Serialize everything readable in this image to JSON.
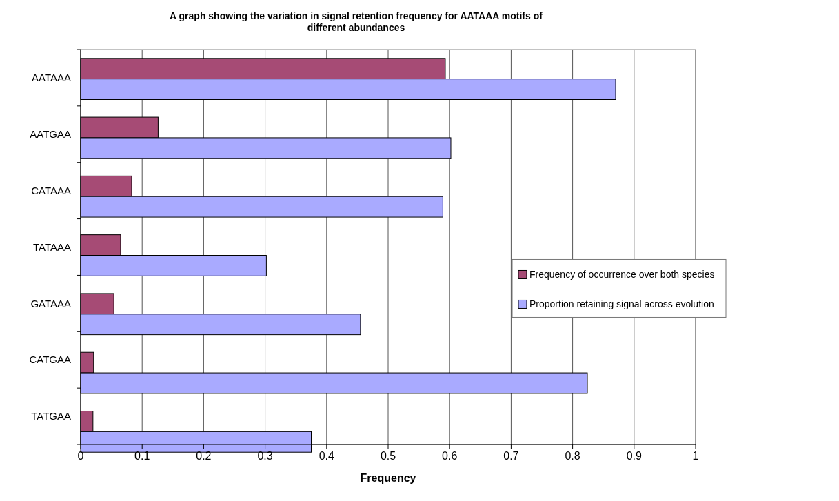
{
  "chart_data": {
    "type": "bar",
    "orientation": "horizontal",
    "title": "A graph showing the variation in signal retention frequency for AATAAA motifs of different abundances",
    "xlabel": "Frequency",
    "categories": [
      "AATAAA",
      "AATGAA",
      "CATAAA",
      "TATAAA",
      "GATAAA",
      "CATGAA",
      "TATGAA"
    ],
    "series": [
      {
        "name": "Frequency of occurrence over both species",
        "color": "#a64b75",
        "values": [
          0.593,
          0.126,
          0.083,
          0.065,
          0.054,
          0.021,
          0.02
        ]
      },
      {
        "name": "Proportion retaining signal across evolution",
        "color": "#a9aaff",
        "values": [
          0.87,
          0.602,
          0.589,
          0.302,
          0.455,
          0.824,
          0.375
        ]
      }
    ],
    "xlim": [
      0,
      1
    ],
    "xticks": [
      0,
      0.1,
      0.2,
      0.3,
      0.4,
      0.5,
      0.6,
      0.7,
      0.8,
      0.9,
      1
    ],
    "grid": "x",
    "legend": "right"
  }
}
